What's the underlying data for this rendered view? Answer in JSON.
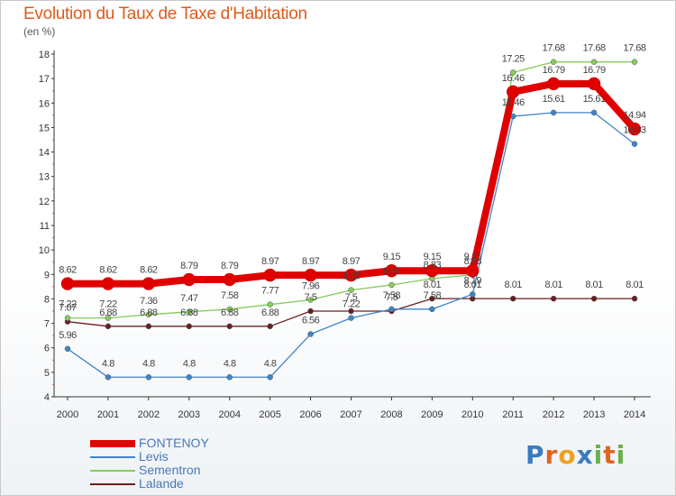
{
  "title": "Evolution du Taux de Taxe d'Habitation",
  "unit": "(en %)",
  "logo": "Proxiti",
  "chart_data": {
    "type": "line",
    "x": [
      2000,
      2001,
      2002,
      2003,
      2004,
      2005,
      2006,
      2007,
      2008,
      2009,
      2010,
      2011,
      2012,
      2013,
      2014
    ],
    "ylim": [
      4,
      18
    ],
    "yticks": [
      4,
      5,
      6,
      7,
      8,
      9,
      10,
      11,
      12,
      13,
      14,
      15,
      16,
      17,
      18
    ],
    "grid": false,
    "legend_position": "bottom-left",
    "series": [
      {
        "name": "FONTENOY",
        "color": "#e00000",
        "values": [
          8.62,
          8.62,
          8.62,
          8.79,
          8.79,
          8.97,
          8.97,
          8.97,
          9.15,
          9.15,
          9.15,
          16.46,
          16.79,
          16.79,
          14.94
        ]
      },
      {
        "name": "Levis",
        "color": "#3f85c8",
        "values": [
          5.96,
          4.8,
          4.8,
          4.8,
          4.8,
          4.8,
          6.56,
          7.22,
          7.58,
          7.58,
          8.19,
          15.46,
          15.61,
          15.61,
          14.33
        ]
      },
      {
        "name": "Sementron",
        "color": "#86cc5a",
        "values": [
          7.22,
          7.22,
          7.36,
          7.47,
          7.58,
          7.77,
          7.96,
          8.36,
          8.57,
          8.83,
          8.98,
          17.25,
          17.68,
          17.68,
          17.68
        ]
      },
      {
        "name": "Lalande",
        "color": "#6b1f1f",
        "values": [
          7.07,
          6.88,
          6.88,
          6.88,
          6.88,
          6.88,
          7.5,
          7.5,
          7.5,
          8.01,
          8.01,
          8.01,
          8.01,
          8.01,
          8.01
        ]
      }
    ]
  }
}
